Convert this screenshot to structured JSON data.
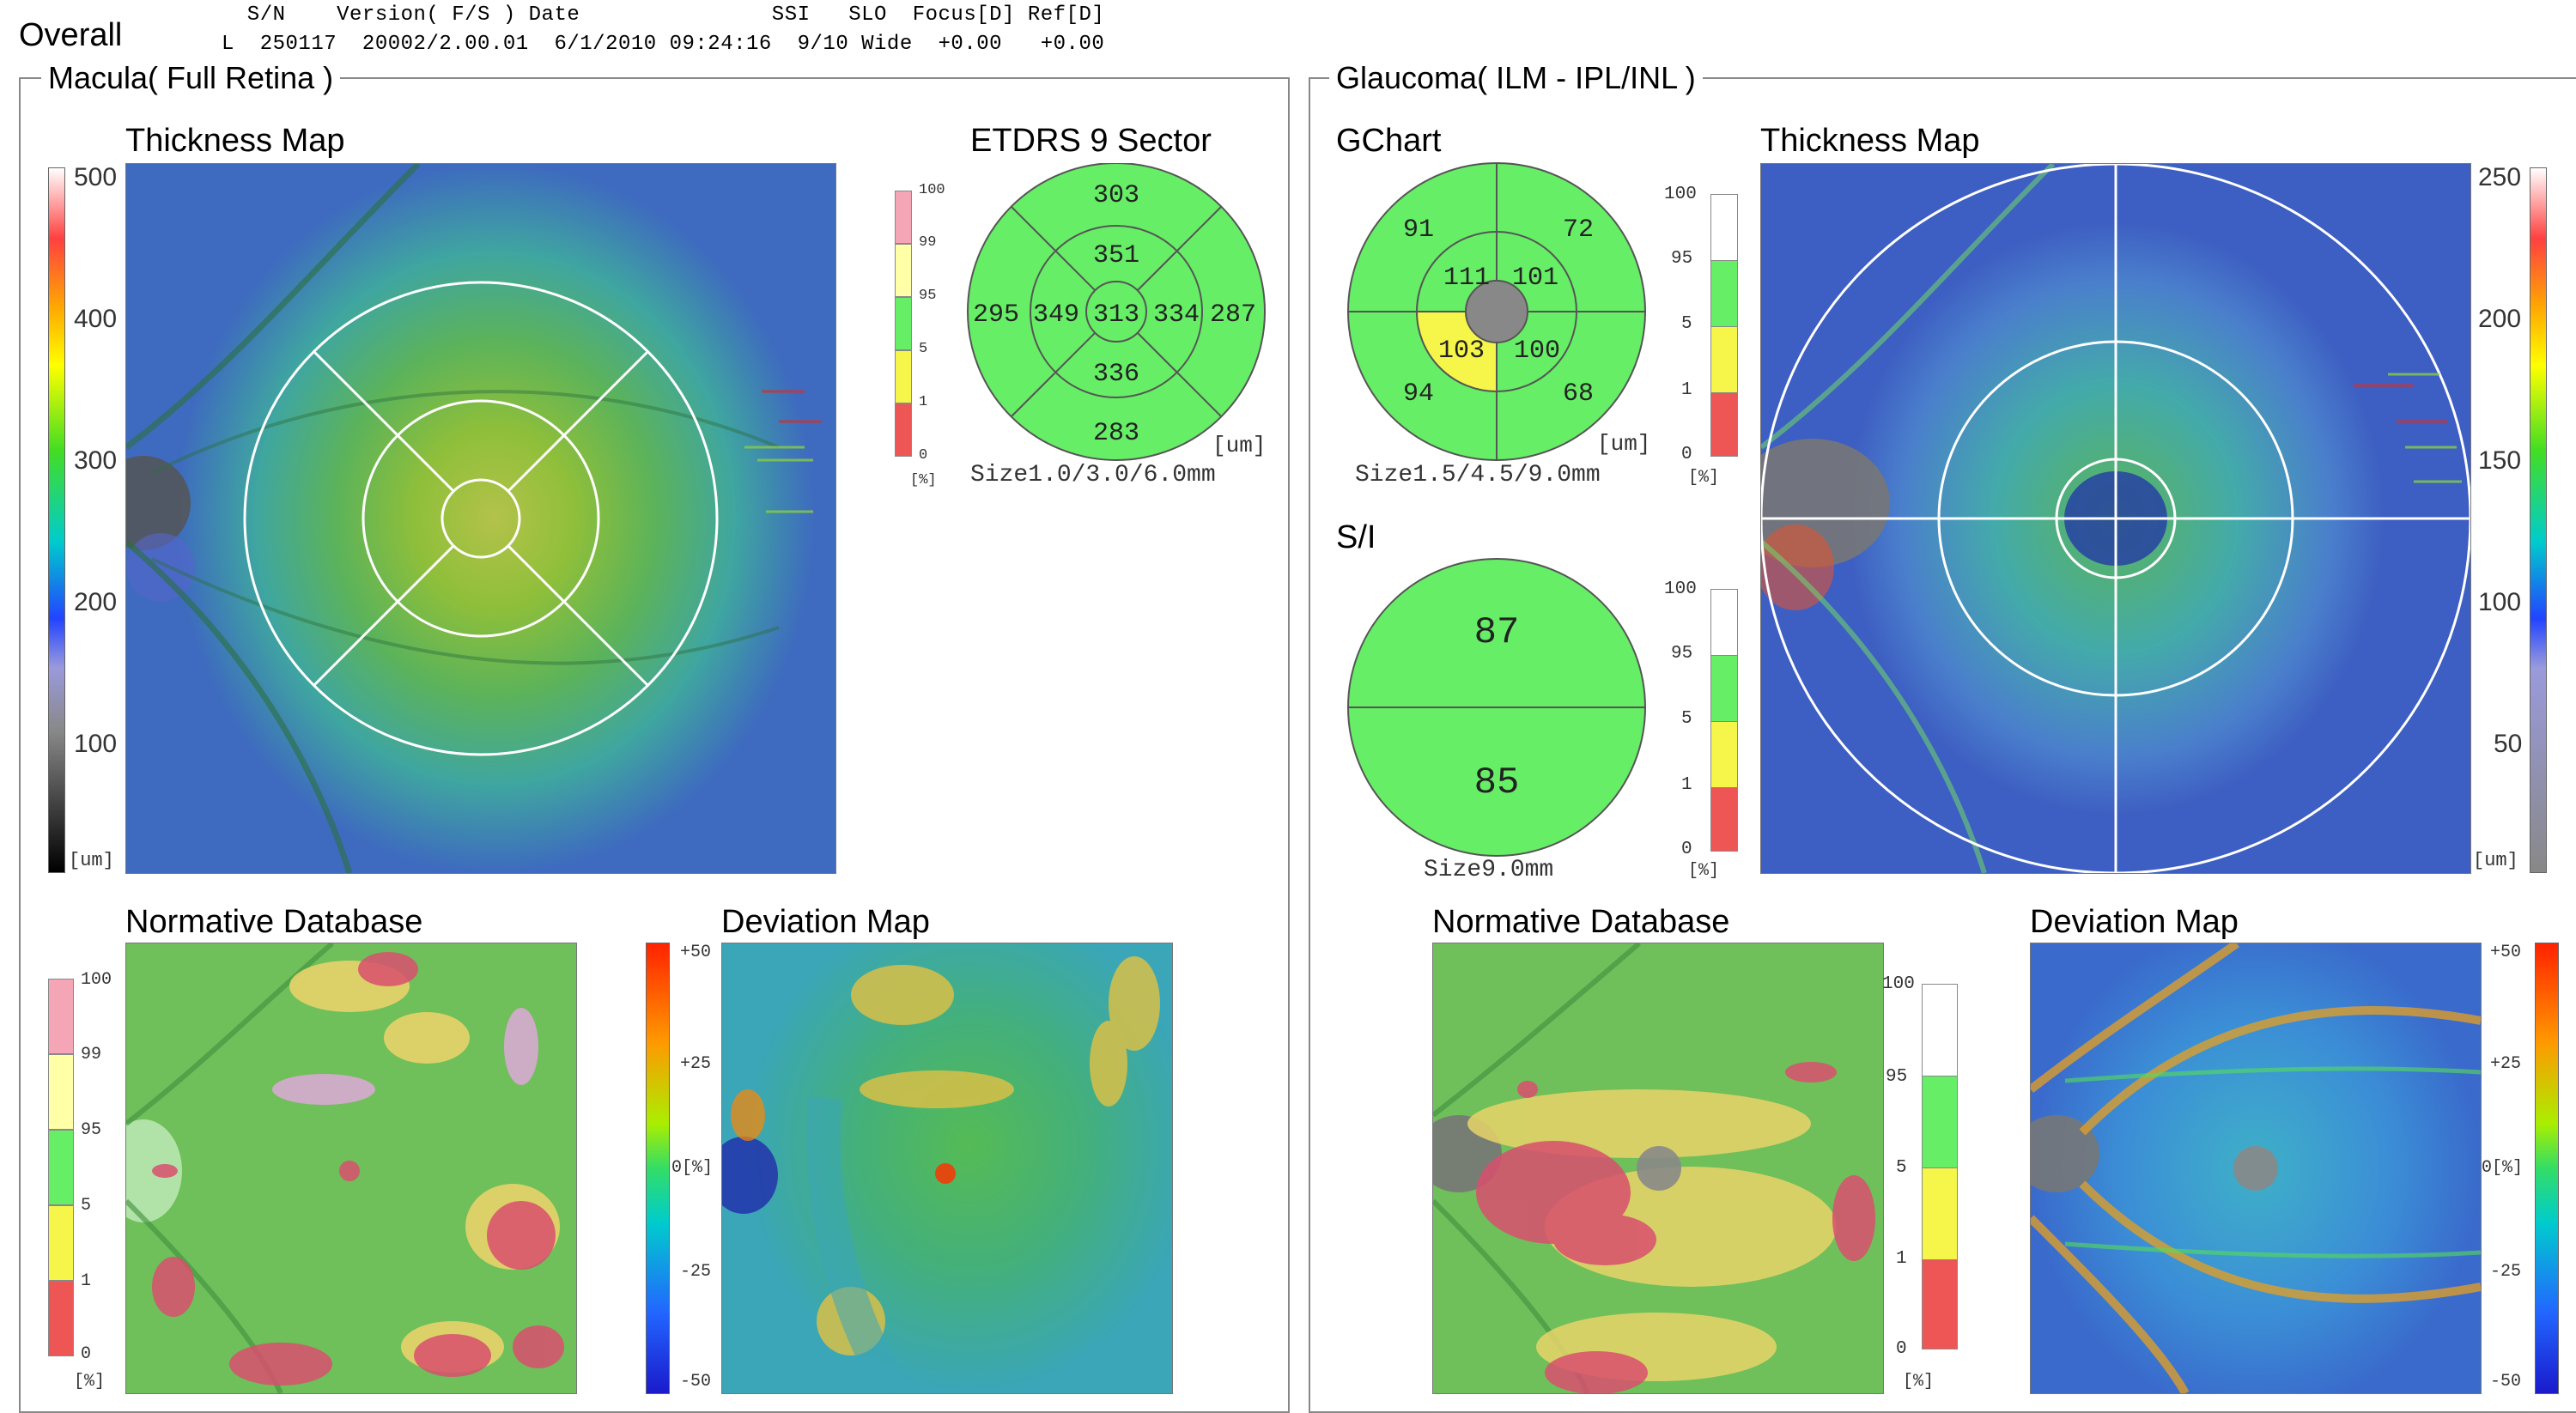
{
  "header": {
    "title": "Overall",
    "row1": "  S/N    Version( F/S ) Date               SSI   SLO  Focus[D] Ref[D]",
    "row2": "L  250117  20002/2.00.01  6/1/2010 09:24:16  9/10 Wide  +0.00   +0.00"
  },
  "macula": {
    "panel_title": "Macula( Full Retina )",
    "thickness_title": "Thickness Map",
    "thickness_scale": [
      "500",
      "400",
      "300",
      "200",
      "100"
    ],
    "thickness_unit": "[um]",
    "etdrs_title": "ETDRS 9 Sector",
    "etdrs_values": {
      "outer_superior": "303",
      "inner_superior": "351",
      "outer_temporal": "295",
      "inner_temporal": "349",
      "center": "313",
      "inner_nasal": "334",
      "outer_nasal": "287",
      "inner_inferior": "336",
      "outer_inferior": "283"
    },
    "etdrs_unit": "[um]",
    "etdrs_size": "Size1.0/3.0/6.0mm",
    "pct_ticks": [
      "100",
      "99",
      "95",
      "5",
      "1",
      "0"
    ],
    "pct_unit": "[%]",
    "normative_title": "Normative Database",
    "deviation_title": "Deviation Map",
    "deviation_scale": [
      "+50",
      "+25",
      "0[%]",
      "-25",
      "-50"
    ]
  },
  "glaucoma": {
    "panel_title": "Glaucoma( ILM - IPL/INL )",
    "gchart_title": "GChart",
    "gchart_values": {
      "outer_ul": "91",
      "outer_ur": "72",
      "inner_ul": "111",
      "inner_ur": "101",
      "inner_ll": "103",
      "inner_lr": "100",
      "outer_ll": "94",
      "outer_lr": "68"
    },
    "gchart_unit": "[um]",
    "gchart_size": "Size1.5/4.5/9.0mm",
    "si_title": "S/I",
    "si_values": {
      "superior": "87",
      "inferior": "85"
    },
    "si_size": "Size9.0mm",
    "pct_ticks": [
      "100",
      "95",
      "5",
      "1",
      "0"
    ],
    "pct_unit": "[%]",
    "thickness_title": "Thickness Map",
    "thickness_scale": [
      "250",
      "200",
      "150",
      "100",
      "50"
    ],
    "thickness_unit": "[um]",
    "normative_title": "Normative Database",
    "deviation_title": "Deviation Map",
    "deviation_scale": [
      "+50",
      "+25",
      "0[%]",
      "-25",
      "-50"
    ]
  },
  "colors": {
    "normal_green": "#66ee66",
    "borderline_yellow": "#f5f54a",
    "outside_red": "#ee5555",
    "above_pink": "#f4a6b6"
  }
}
